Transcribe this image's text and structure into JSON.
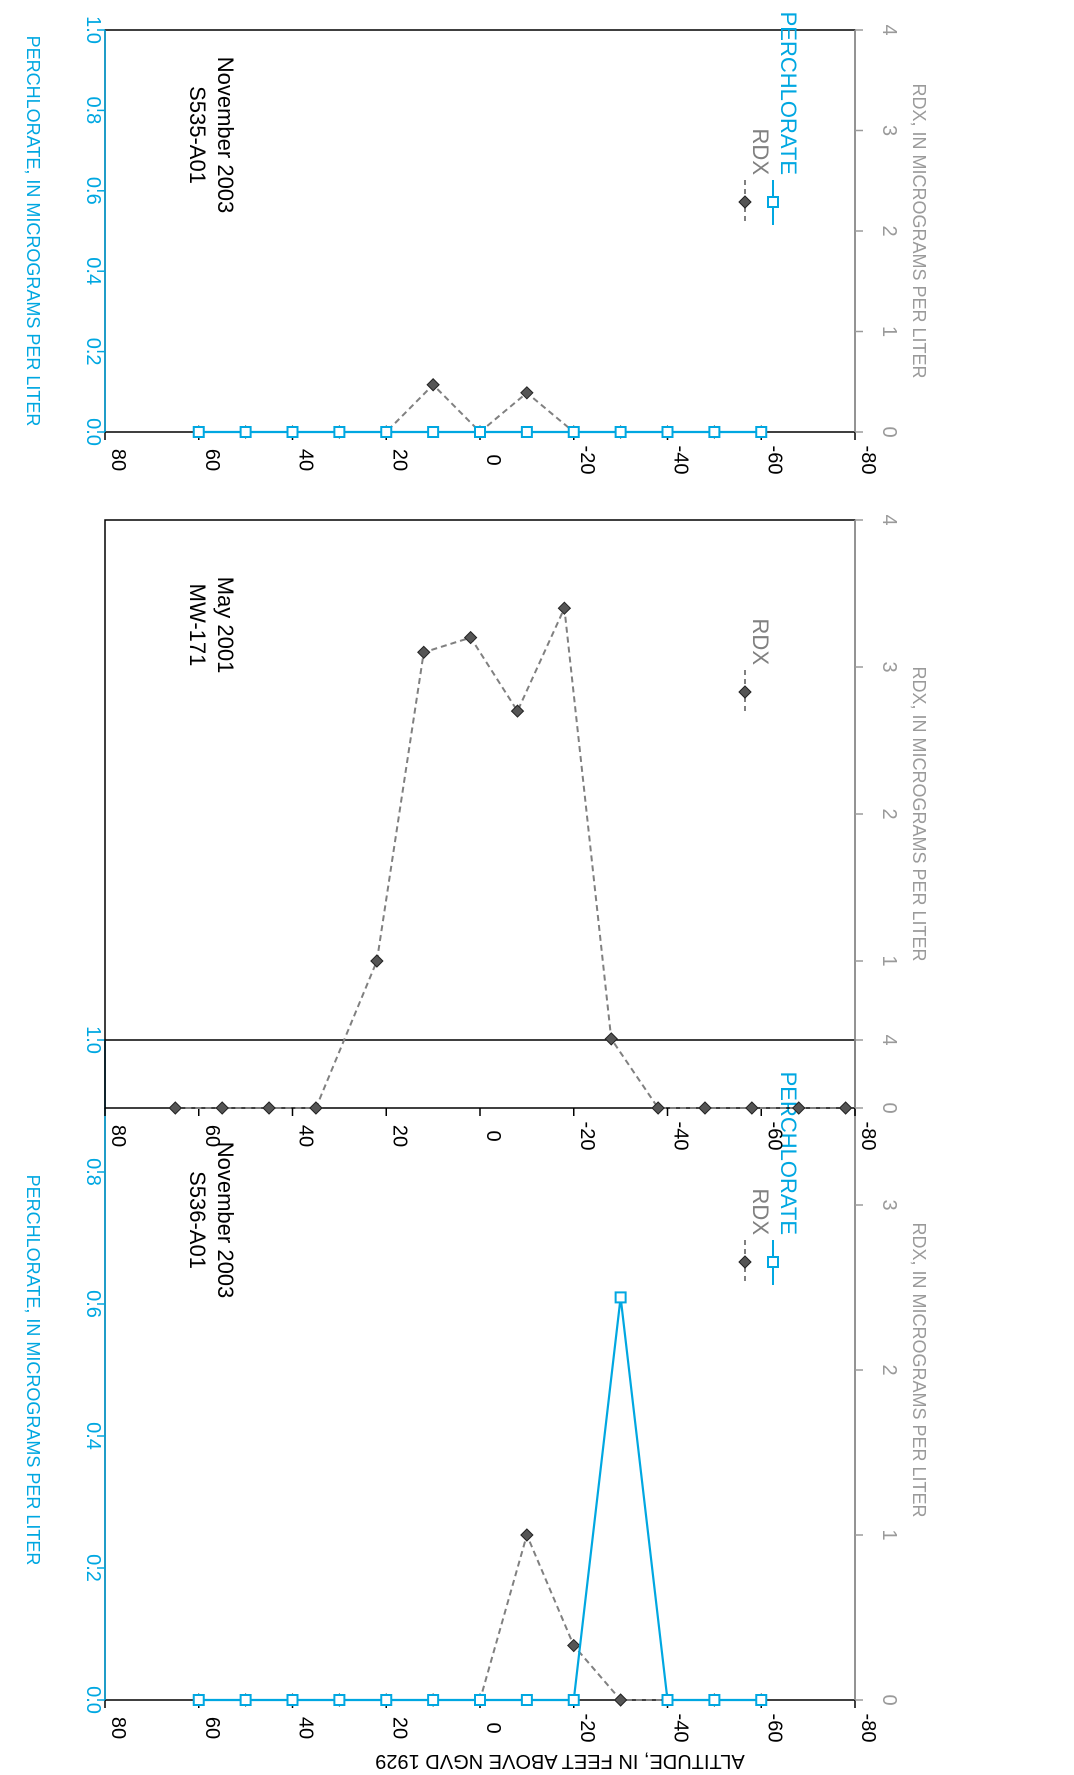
{
  "chart_data": [
    {
      "type": "line",
      "panel": "S536-A01",
      "well": "S536-A01",
      "date": "November 2003",
      "altitude_ticks": [
        80,
        60,
        40,
        20,
        0,
        -20,
        -40,
        -60,
        -80
      ],
      "rdx_ticks": [
        0,
        1,
        2,
        3,
        4
      ],
      "perchlorate_ticks": [
        "0.0",
        "0.2",
        "0.4",
        "0.6",
        "0.8",
        "1.0"
      ],
      "rdx_axis_label": "RDX, IN MICROGRAMS PER LITER",
      "perchlorate_axis_label": "PERCHLORATE, IN MICROGRAMS PER LITER",
      "altitude_range": [
        80,
        -80
      ],
      "rdx_range": [
        0,
        4
      ],
      "perchlorate_range": [
        0,
        1
      ],
      "series": [
        {
          "name": "RDX",
          "color": "#808080",
          "altitude": [
            60,
            50,
            40,
            30,
            20,
            10,
            0,
            -10,
            -20,
            -30,
            -40,
            -50,
            -60
          ],
          "values": [
            0,
            0,
            0,
            0,
            0,
            0,
            0,
            1.0,
            0.33,
            0,
            0,
            0,
            0
          ]
        },
        {
          "name": "PERCHLORATE",
          "color": "#00a7e1",
          "altitude": [
            60,
            50,
            40,
            30,
            20,
            10,
            0,
            -10,
            -20,
            -30,
            -40,
            -50,
            -60
          ],
          "values": [
            0,
            0,
            0,
            0,
            0,
            0,
            0,
            0,
            0,
            0.61,
            0,
            0,
            0
          ]
        }
      ]
    },
    {
      "type": "line",
      "panel": "MW-171",
      "well": "MW-171",
      "date": "May 2001",
      "altitude_ticks": [
        80,
        60,
        40,
        20,
        0,
        -20,
        -40,
        -60,
        -80
      ],
      "rdx_ticks": [
        0,
        1,
        2,
        3,
        4
      ],
      "rdx_axis_label": "RDX, IN MICROGRAMS PER LITER",
      "altitude_range": [
        80,
        -80
      ],
      "rdx_range": [
        0,
        4
      ],
      "series": [
        {
          "name": "RDX",
          "color": "#808080",
          "altitude": [
            65,
            55,
            45,
            35,
            22,
            12,
            2,
            -8,
            -18,
            -28,
            -38,
            -48,
            -58,
            -68,
            -78
          ],
          "values": [
            0,
            0,
            0,
            0,
            1.0,
            3.1,
            3.2,
            2.7,
            3.4,
            0.47,
            0,
            0,
            0,
            0,
            0
          ]
        }
      ]
    },
    {
      "type": "line",
      "panel": "S535-A01",
      "well": "S535-A01",
      "date": "November 2003",
      "altitude_ticks": [
        80,
        60,
        40,
        20,
        0,
        -20,
        -40,
        -60,
        -80
      ],
      "rdx_ticks": [
        0,
        1,
        2,
        3,
        4
      ],
      "perchlorate_ticks": [
        "0.0",
        "0.2",
        "0.4",
        "0.6",
        "0.8",
        "1.0"
      ],
      "rdx_axis_label": "RDX, IN MICROGRAMS PER LITER",
      "perchlorate_axis_label": "PERCHLORATE, IN MICROGRAMS PER LITER",
      "altitude_range": [
        80,
        -80
      ],
      "rdx_range": [
        0,
        4
      ],
      "perchlorate_range": [
        0,
        1
      ],
      "series": [
        {
          "name": "RDX",
          "color": "#808080",
          "altitude": [
            60,
            50,
            40,
            30,
            20,
            10,
            0,
            -10,
            -20,
            -30,
            -40,
            -50,
            -60
          ],
          "values": [
            0,
            0,
            0,
            0,
            0,
            0.47,
            0,
            0.39,
            0,
            0,
            0,
            0,
            0
          ]
        },
        {
          "name": "PERCHLORATE",
          "color": "#00a7e1",
          "altitude": [
            60,
            50,
            40,
            30,
            20,
            10,
            0,
            -10,
            -20,
            -30,
            -40,
            -50,
            -60
          ],
          "values": [
            0,
            0,
            0,
            0,
            0,
            0,
            0,
            0,
            0,
            0,
            0,
            0,
            0
          ]
        }
      ]
    }
  ],
  "shared_axis_title": "ALTITUDE, IN FEET ABOVE NGVD 1929"
}
